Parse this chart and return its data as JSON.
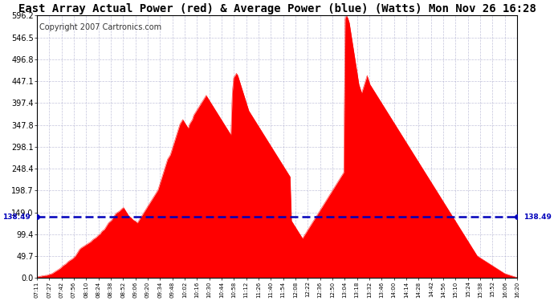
{
  "title": "East Array Actual Power (red) & Average Power (blue) (Watts) Mon Nov 26 16:28",
  "copyright": "Copyright 2007 Cartronics.com",
  "avg_power": 138.49,
  "y_ticks": [
    0.0,
    49.7,
    99.4,
    149.0,
    198.7,
    248.4,
    298.1,
    347.8,
    397.4,
    447.1,
    496.8,
    546.5,
    596.2
  ],
  "y_max": 596.2,
  "x_labels": [
    "07:11",
    "07:27",
    "07:42",
    "07:56",
    "08:10",
    "08:24",
    "08:38",
    "08:52",
    "09:06",
    "09:20",
    "09:34",
    "09:48",
    "10:02",
    "10:16",
    "10:30",
    "10:44",
    "10:58",
    "11:12",
    "11:26",
    "11:40",
    "11:54",
    "12:08",
    "12:22",
    "12:36",
    "12:50",
    "13:04",
    "13:18",
    "13:32",
    "13:46",
    "14:00",
    "14:14",
    "14:28",
    "14:42",
    "14:56",
    "15:10",
    "15:24",
    "15:38",
    "15:52",
    "16:06",
    "16:20"
  ],
  "red_color": "#ff0000",
  "blue_color": "#0000bb",
  "bg_color": "#ffffff",
  "title_fontsize": 10,
  "copyright_fontsize": 7,
  "power_profile": [
    2,
    3,
    4,
    4,
    5,
    5,
    6,
    6,
    7,
    8,
    9,
    10,
    12,
    14,
    16,
    18,
    20,
    22,
    25,
    28,
    30,
    32,
    35,
    38,
    40,
    42,
    44,
    47,
    50,
    55,
    60,
    65,
    68,
    70,
    72,
    74,
    76,
    78,
    80,
    82,
    85,
    88,
    90,
    92,
    95,
    98,
    100,
    105,
    108,
    110,
    115,
    120,
    125,
    128,
    130,
    135,
    140,
    145,
    148,
    150,
    152,
    155,
    158,
    160,
    155,
    150,
    145,
    140,
    138,
    135,
    132,
    130,
    128,
    125,
    130,
    135,
    140,
    145,
    150,
    155,
    160,
    165,
    170,
    175,
    180,
    185,
    190,
    195,
    200,
    210,
    220,
    230,
    240,
    250,
    260,
    270,
    275,
    280,
    290,
    300,
    310,
    320,
    330,
    340,
    350,
    355,
    360,
    355,
    350,
    345,
    340,
    350,
    355,
    360,
    370,
    375,
    380,
    385,
    390,
    395,
    400,
    405,
    410,
    415,
    410,
    405,
    400,
    395,
    390,
    385,
    380,
    375,
    370,
    365,
    360,
    355,
    350,
    345,
    340,
    335,
    330,
    325,
    420,
    455,
    460,
    465,
    460,
    450,
    440,
    430,
    420,
    410,
    400,
    390,
    380,
    375,
    370,
    365,
    360,
    355,
    350,
    345,
    340,
    335,
    330,
    325,
    320,
    315,
    310,
    305,
    300,
    295,
    290,
    285,
    280,
    275,
    270,
    265,
    260,
    255,
    250,
    245,
    240,
    235,
    230,
    130,
    125,
    120,
    115,
    110,
    105,
    100,
    95,
    90,
    95,
    100,
    105,
    110,
    115,
    120,
    125,
    130,
    135,
    140,
    145,
    150,
    155,
    160,
    165,
    170,
    175,
    180,
    185,
    190,
    195,
    200,
    205,
    210,
    215,
    220,
    225,
    230,
    235,
    240,
    590,
    596,
    590,
    580,
    560,
    540,
    520,
    500,
    480,
    460,
    440,
    430,
    420,
    430,
    440,
    450,
    460,
    450,
    440,
    435,
    430,
    425,
    420,
    415,
    410,
    405,
    400,
    395,
    390,
    385,
    380,
    375,
    370,
    365,
    360,
    355,
    350,
    345,
    340,
    335,
    330,
    325,
    320,
    315,
    310,
    305,
    300,
    295,
    290,
    285,
    280,
    275,
    270,
    265,
    260,
    255,
    250,
    245,
    240,
    235,
    230,
    225,
    220,
    215,
    210,
    205,
    200,
    195,
    190,
    185,
    180,
    175,
    170,
    165,
    160,
    155,
    150,
    145,
    140,
    135,
    130,
    125,
    120,
    115,
    110,
    105,
    100,
    95,
    90,
    85,
    80,
    75,
    70,
    65,
    60,
    55,
    50,
    48,
    46,
    44,
    42,
    40,
    38,
    36,
    34,
    32,
    30,
    28,
    26,
    24,
    22,
    20,
    18,
    16,
    14,
    12,
    10,
    9,
    8,
    7,
    6,
    5,
    4,
    3,
    2,
    2
  ]
}
